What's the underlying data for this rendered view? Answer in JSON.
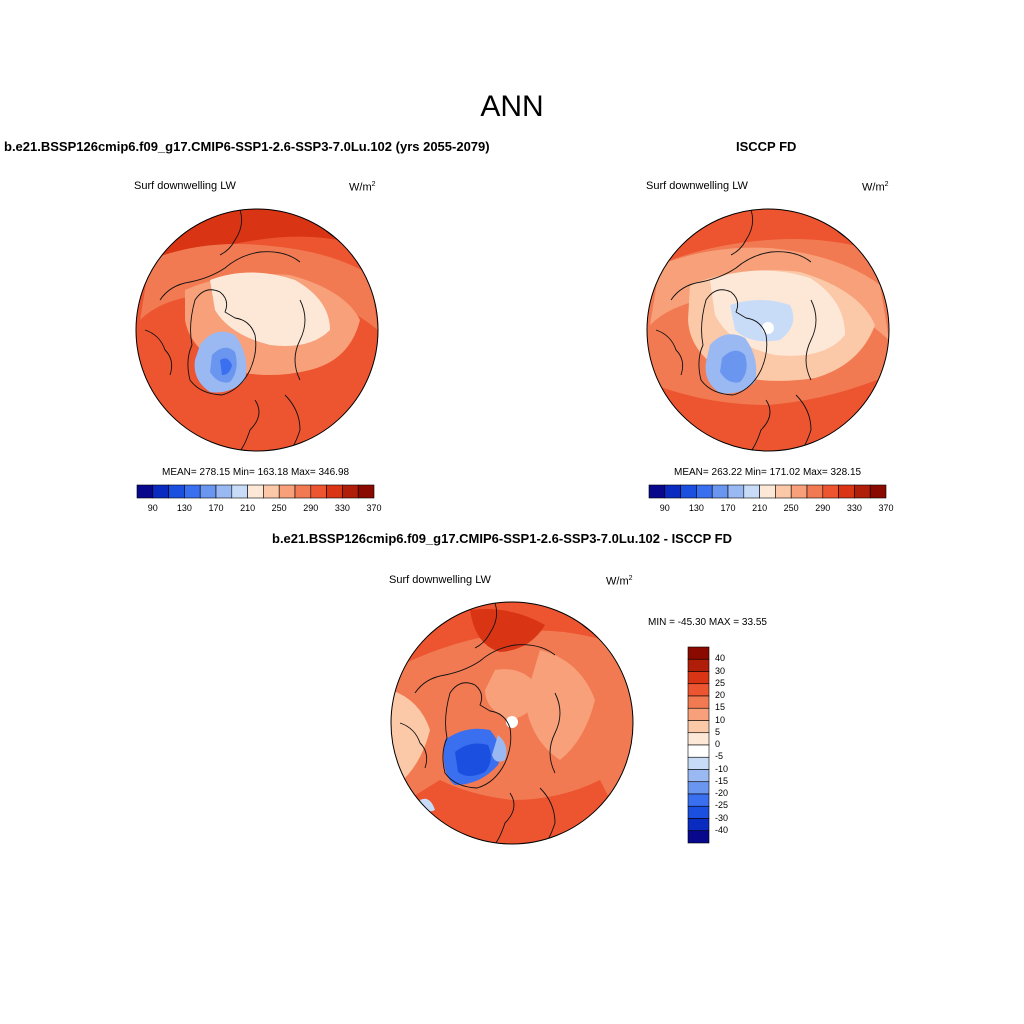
{
  "title": "ANN",
  "colors": {
    "scale": [
      "#08088c",
      "#0a2bbf",
      "#1a4fdf",
      "#3a6ff0",
      "#6a96f0",
      "#9ab9f3",
      "#c9dcf7",
      "#fde8d8",
      "#fbc8a8",
      "#f7a07a",
      "#f27a52",
      "#ec5530",
      "#d93515",
      "#b01e0a",
      "#8b0a00"
    ]
  },
  "panels": [
    {
      "id": "test",
      "case_label": "b.e21.BSSP126cmip6.f09_g17.CMIP6-SSP1-2.6-SSP3-7.0Lu.102 (yrs 2055-2079)",
      "variable": "Surf downwelling LW",
      "units": "W/m",
      "units_exp": "2",
      "stats": "MEAN= 278.15  Min= 163.18  Max= 346.98",
      "colorbar_ticks": [
        "90",
        "130",
        "170",
        "210",
        "250",
        "290",
        "330",
        "370"
      ]
    },
    {
      "id": "obs",
      "case_label": "ISCCP FD",
      "variable": "Surf downwelling LW",
      "units": "W/m",
      "units_exp": "2",
      "stats": "MEAN= 263.22  Min= 171.02  Max= 328.15",
      "colorbar_ticks": [
        "90",
        "130",
        "170",
        "210",
        "250",
        "290",
        "330",
        "370"
      ]
    },
    {
      "id": "diff",
      "case_label": "b.e21.BSSP126cmip6.f09_g17.CMIP6-SSP1-2.6-SSP3-7.0Lu.102 - ISCCP FD",
      "variable": "Surf downwelling LW",
      "units": "W/m",
      "units_exp": "2",
      "stats": "MIN = -45.30 MAX =  33.55",
      "colorbar_ticks": [
        "40",
        "30",
        "25",
        "20",
        "15",
        "10",
        "5",
        "0",
        "-5",
        "-10",
        "-15",
        "-20",
        "-25",
        "-30",
        "-40"
      ]
    }
  ]
}
